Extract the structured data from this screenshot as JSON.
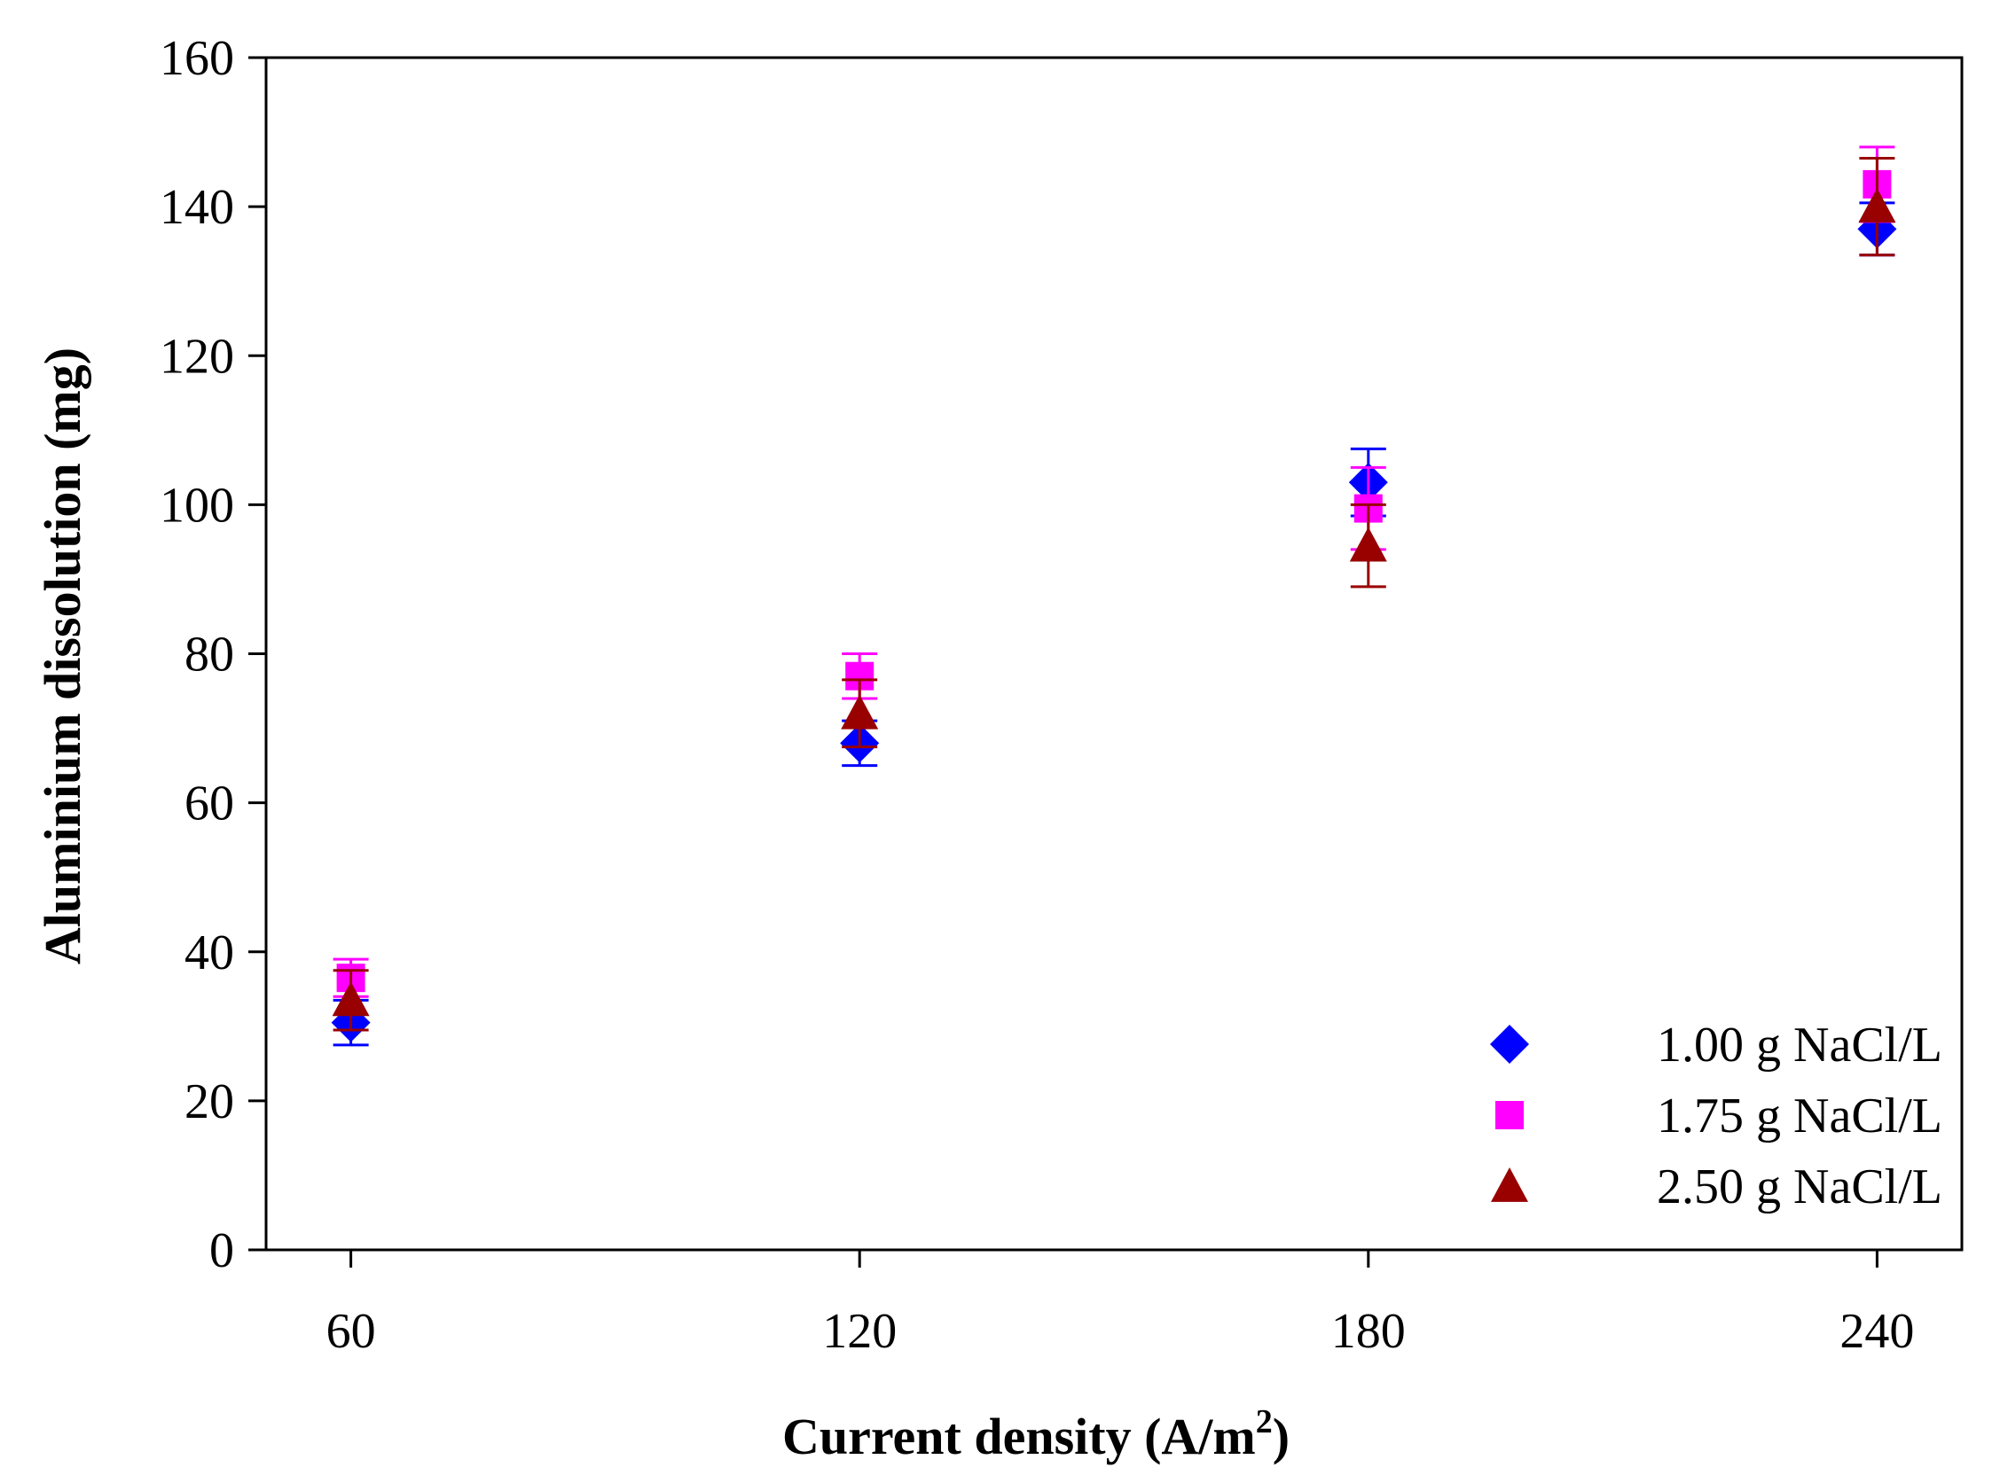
{
  "chart_data": {
    "type": "scatter",
    "title": "",
    "xlabel": "Current density (A/m",
    "xlabel_sup": "2",
    "xlabel_suffix": ")",
    "ylabel": "Aluminium dissolution (mg)",
    "x_categories": [
      "60",
      "120",
      "180",
      "240"
    ],
    "x": [
      60,
      120,
      180,
      240
    ],
    "xlim": [
      50,
      250
    ],
    "ylim": [
      0,
      160
    ],
    "yticks": [
      0,
      20,
      40,
      60,
      80,
      100,
      120,
      140,
      160
    ],
    "grid": false,
    "legend_position": "bottom-right",
    "series": [
      {
        "name": "1.00 g NaCl/L",
        "marker": "diamond",
        "color": "#0000FF",
        "values": [
          30.5,
          68.0,
          103.0,
          137.0
        ],
        "errors": [
          3.0,
          3.0,
          4.5,
          3.5
        ]
      },
      {
        "name": "1.75 g NaCl/L",
        "marker": "square",
        "color": "#FF00FF",
        "values": [
          36.5,
          77.0,
          99.5,
          143.0
        ],
        "errors": [
          2.5,
          3.0,
          5.5,
          5.0
        ]
      },
      {
        "name": "2.50 g NaCl/L",
        "marker": "triangle",
        "color": "#990000",
        "values": [
          33.5,
          72.0,
          94.5,
          140.0
        ],
        "errors": [
          4.0,
          4.5,
          5.5,
          6.5
        ]
      }
    ]
  }
}
